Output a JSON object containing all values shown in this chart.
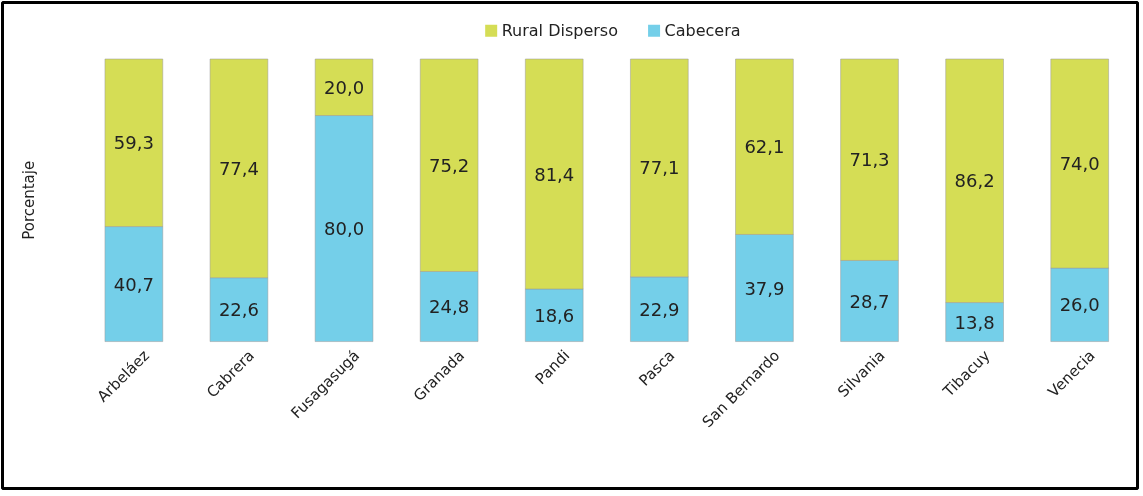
{
  "chart_data": {
    "type": "bar",
    "stacked": true,
    "ylabel": "Porcentaje",
    "legend": "top",
    "categories": [
      "Arbeláez",
      "Cabrera",
      "Fusagasugá",
      "Granada",
      "Pandi",
      "Pasca",
      "San Bernardo",
      "Silvania",
      "Tibacuy",
      "Venecia"
    ],
    "series": [
      {
        "name": "Cabecera",
        "color": "#74cfe9",
        "values": [
          40.7,
          22.6,
          80.0,
          24.8,
          18.6,
          22.9,
          37.9,
          28.7,
          13.8,
          26.0
        ],
        "value_labels": [
          "40,7",
          "22,6",
          "80,0",
          "24,8",
          "18,6",
          "22,9",
          "37,9",
          "28,7",
          "13,8",
          "26,0"
        ]
      },
      {
        "name": "Rural Disperso",
        "color": "#d5dd55",
        "values": [
          59.3,
          77.4,
          20.0,
          75.2,
          81.4,
          77.1,
          62.1,
          71.3,
          86.2,
          74.0
        ],
        "value_labels": [
          "59,3",
          "77,4",
          "20,0",
          "75,2",
          "81,4",
          "77,1",
          "62,1",
          "71,3",
          "86,2",
          "74,0"
        ]
      }
    ]
  }
}
